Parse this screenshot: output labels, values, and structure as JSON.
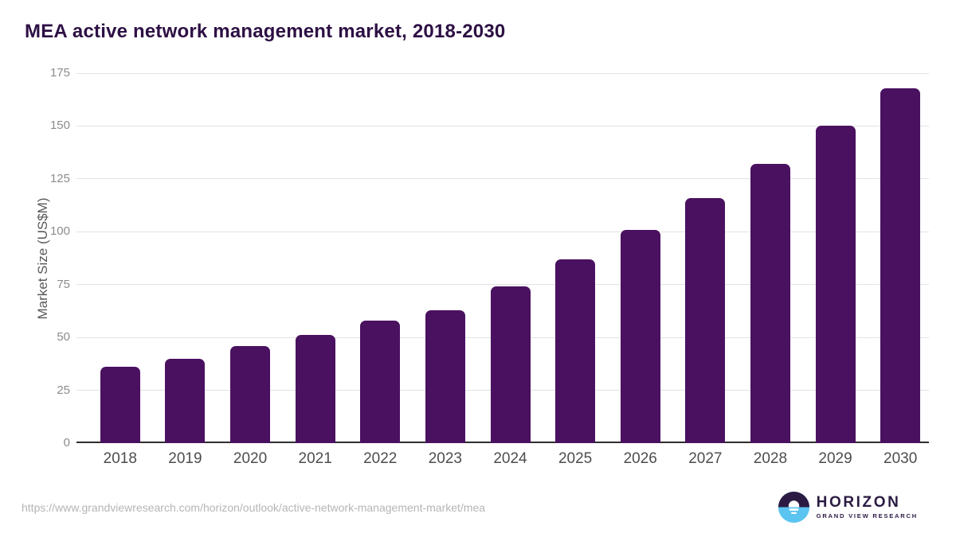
{
  "title": "MEA active network management market, 2018-2030",
  "footer": {
    "source_url": "https://www.grandviewresearch.com/horizon/outlook/active-network-management-market/mea",
    "logo": {
      "icon": "horizon-sun-over-water-icon",
      "name": "HORIZON",
      "subtext": "GRAND VIEW RESEARCH"
    }
  },
  "colors": {
    "bar_color": "#4a1160",
    "title_color": "#2d1044",
    "axis_title_color": "#58595b",
    "xtick_color": "#4c4d4f",
    "ytick_color": "#8c8c8c",
    "gridline_color": "#e3e3e3",
    "baseline_color": "#2e2e2e",
    "url_color": "#b5b5b5",
    "logo_purple": "#2b1b43",
    "logo_blue": "#5bc4f1"
  },
  "chart_data": {
    "type": "bar",
    "title": "MEA active network management market, 2018-2030",
    "categories": [
      "2018",
      "2019",
      "2020",
      "2021",
      "2022",
      "2023",
      "2024",
      "2025",
      "2026",
      "2027",
      "2028",
      "2029",
      "2030"
    ],
    "values": [
      36,
      40,
      46,
      51,
      58,
      63,
      74,
      87,
      101,
      116,
      132,
      150,
      168
    ],
    "xlabel": "",
    "ylabel": "Market Size (US$M)",
    "ylim": [
      0,
      175
    ],
    "yticks": [
      0,
      25,
      50,
      75,
      100,
      125,
      150,
      175
    ],
    "grid": true,
    "legend_position": "none",
    "bar_corner_radius": "rounded-top"
  }
}
